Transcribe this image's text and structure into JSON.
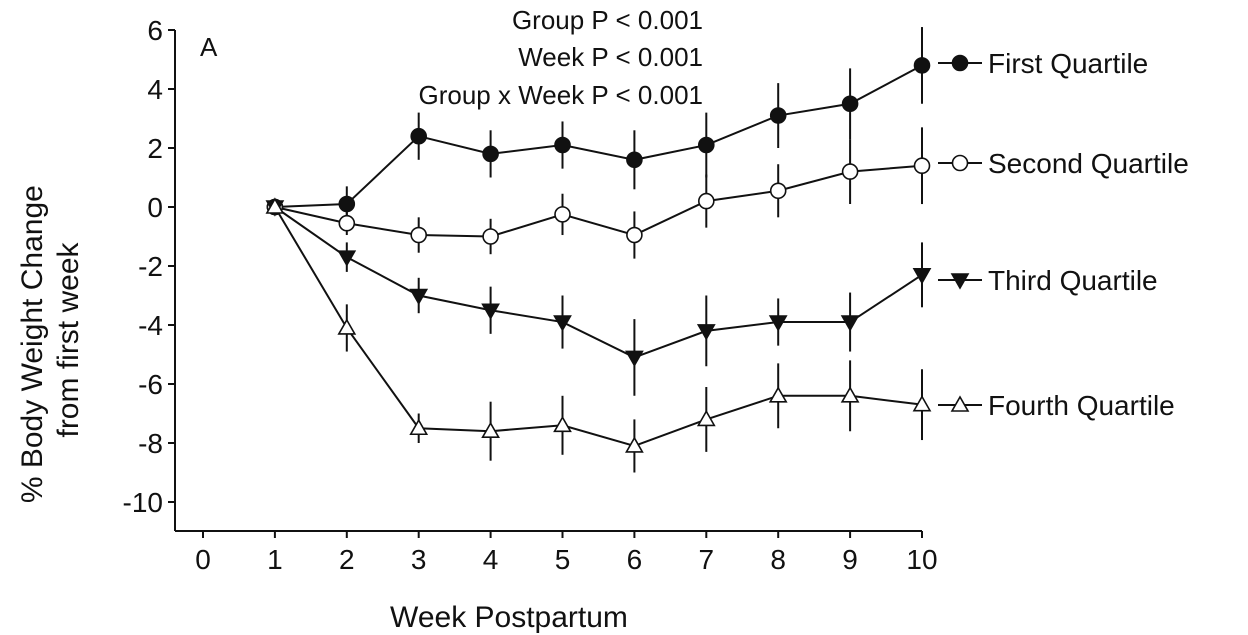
{
  "chart_data": {
    "type": "line",
    "panel_label": "A",
    "annotations": [
      "Group P < 0.001",
      "Week P < 0.001",
      "Group x Week P < 0.001"
    ],
    "xlabel": "Week Postpartum",
    "ylabel": [
      "% Body Weight Change",
      "from first week"
    ],
    "xlim": [
      0,
      10
    ],
    "ylim": [
      -10,
      6
    ],
    "xticks": [
      0,
      1,
      2,
      3,
      4,
      5,
      6,
      7,
      8,
      9,
      10
    ],
    "yticks": [
      -10,
      -8,
      -6,
      -4,
      -2,
      0,
      2,
      4,
      6
    ],
    "x": [
      1,
      2,
      3,
      4,
      5,
      6,
      7,
      8,
      9,
      10
    ],
    "series": [
      {
        "name": "First Quartile",
        "marker": "circle-filled",
        "values": [
          0,
          0.1,
          2.4,
          1.8,
          2.1,
          1.6,
          2.1,
          3.1,
          3.5,
          4.8
        ],
        "errors": [
          0,
          0.6,
          0.8,
          0.8,
          0.8,
          1.0,
          1.1,
          1.1,
          1.2,
          1.3
        ]
      },
      {
        "name": "Second Quartile",
        "marker": "circle-open",
        "values": [
          0,
          -0.55,
          -0.95,
          -1.0,
          -0.25,
          -0.95,
          0.2,
          0.55,
          1.2,
          1.4
        ],
        "errors": [
          0,
          0.4,
          0.6,
          0.6,
          0.7,
          0.8,
          0.9,
          0.9,
          1.1,
          1.3
        ]
      },
      {
        "name": "Third Quartile",
        "marker": "triangle-down-filled",
        "values": [
          0,
          -1.7,
          -3.0,
          -3.5,
          -3.9,
          -5.1,
          -4.2,
          -3.9,
          -3.9,
          -2.3
        ],
        "errors": [
          0,
          0.5,
          0.6,
          0.8,
          0.9,
          1.3,
          1.2,
          0.8,
          1.0,
          1.1
        ]
      },
      {
        "name": "Fourth Quartile",
        "marker": "triangle-up-open",
        "values": [
          0,
          -4.1,
          -7.5,
          -7.6,
          -7.4,
          -8.1,
          -7.2,
          -6.4,
          -6.4,
          -6.7
        ],
        "errors": [
          0,
          0.8,
          0.5,
          1.0,
          1.0,
          0.9,
          1.1,
          1.1,
          1.2,
          1.2
        ]
      }
    ],
    "legend_placement": "right",
    "grid": false
  }
}
